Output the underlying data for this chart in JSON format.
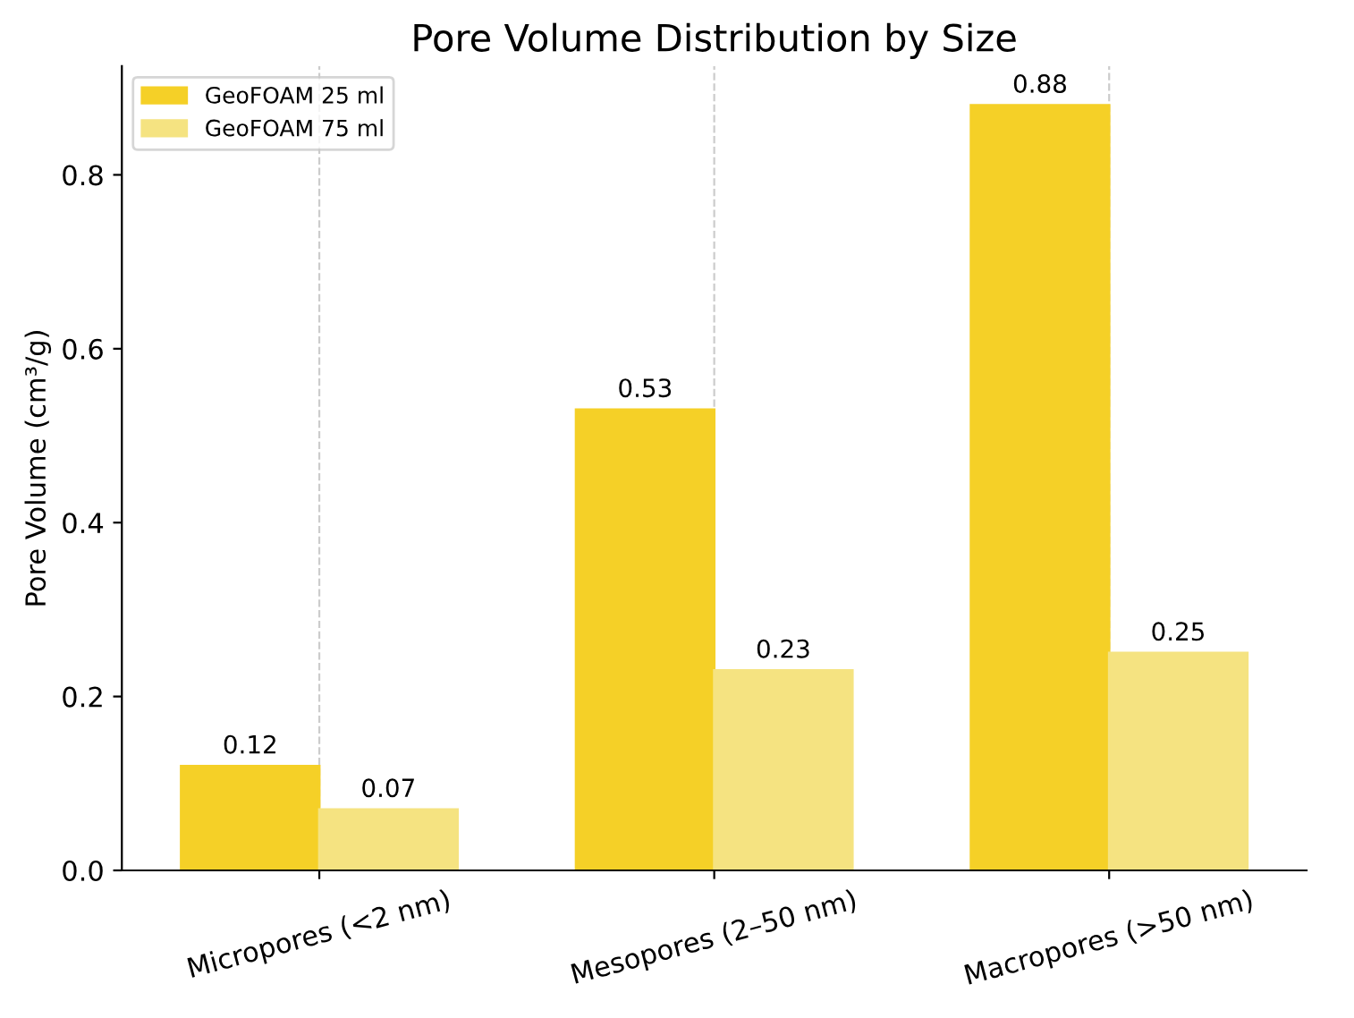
{
  "chart_data": {
    "type": "bar",
    "title": "Pore Volume Distribution by Size",
    "ylabel": "Pore Volume (cm³/g)",
    "categories": [
      "Micropores (<2 nm)",
      "Mesopores (2–50 nm)",
      "Macropores (>50 nm)"
    ],
    "series": [
      {
        "name": "GeoFOAM 25 ml",
        "color": "#f5d027",
        "values": [
          0.12,
          0.53,
          0.88
        ]
      },
      {
        "name": "GeoFOAM 75 ml",
        "color": "#f5e381",
        "values": [
          0.07,
          0.23,
          0.25
        ]
      }
    ],
    "ylim": [
      0,
      0.925
    ],
    "yticks": [
      {
        "value": 0,
        "label": "0.0"
      },
      0.2,
      0.4,
      0.6,
      0.8
    ],
    "grid": "x",
    "legend": "top left",
    "data_labels": true
  }
}
